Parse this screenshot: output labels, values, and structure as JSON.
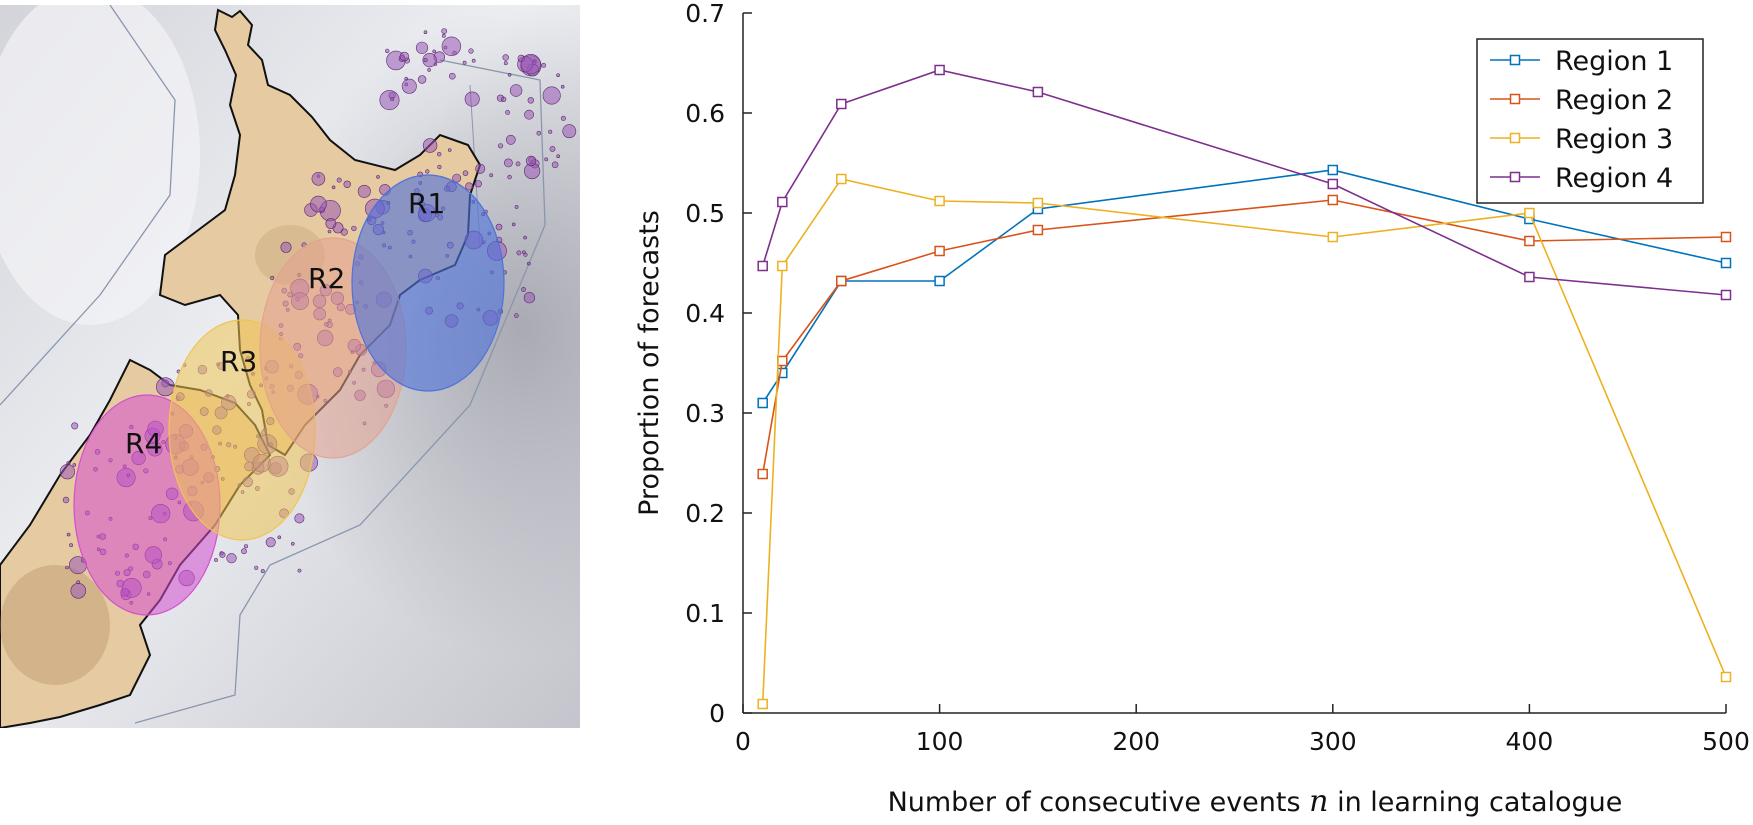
{
  "map": {
    "regions": [
      {
        "label": "R1",
        "color": "#4f72d8"
      },
      {
        "label": "R2",
        "color": "#e3a38f"
      },
      {
        "label": "R3",
        "color": "#efc454"
      },
      {
        "label": "R4",
        "color": "#d44fcf"
      }
    ],
    "land_color": "#e8cfa8",
    "sea_color": "#e2e3e8",
    "event_color": "#9b59b6"
  },
  "chart_data": {
    "type": "line",
    "xlabel_prefix": "Number of consecutive events",
    "xlabel_var": "n",
    "xlabel_suffix": "in learning catalogue",
    "ylabel": "Proportion of forecasts",
    "xlim": [
      0,
      500
    ],
    "ylim": [
      0,
      0.7
    ],
    "xticks": [
      0,
      100,
      200,
      300,
      400,
      500
    ],
    "yticks": [
      0,
      0.1,
      0.2,
      0.3,
      0.4,
      0.5,
      0.6,
      0.7
    ],
    "xtick_labels": [
      "0",
      "100",
      "200",
      "300",
      "400",
      "500"
    ],
    "ytick_labels": [
      "0",
      "0.1",
      "0.2",
      "0.3",
      "0.4",
      "0.5",
      "0.6",
      "0.7"
    ],
    "grid": false,
    "legend_position": "top-right",
    "x": [
      10,
      20,
      50,
      100,
      150,
      300,
      400,
      500
    ],
    "series": [
      {
        "name": "Region 1",
        "color": "#0072bd",
        "values": [
          0.31,
          0.34,
          0.432,
          0.432,
          0.504,
          0.543,
          0.494,
          0.45
        ]
      },
      {
        "name": "Region 2",
        "color": "#d95319",
        "values": [
          0.239,
          0.352,
          0.432,
          0.462,
          0.483,
          0.513,
          0.472,
          0.476
        ]
      },
      {
        "name": "Region 3",
        "color": "#edb120",
        "values": [
          0.009,
          0.447,
          0.534,
          0.512,
          0.51,
          0.476,
          0.5,
          0.036
        ]
      },
      {
        "name": "Region 4",
        "color": "#7e2f8e",
        "values": [
          0.447,
          0.511,
          0.609,
          0.643,
          0.621,
          0.529,
          0.436,
          0.418
        ]
      }
    ]
  }
}
